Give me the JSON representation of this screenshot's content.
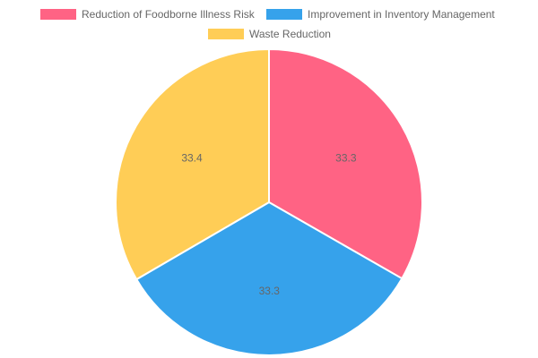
{
  "chart_data": {
    "type": "pie",
    "categories": [
      "Reduction of Foodborne Illness Risk",
      "Improvement in Inventory Management",
      "Waste Reduction"
    ],
    "values": [
      33.3,
      33.3,
      33.4
    ],
    "colors": [
      "#ff6384",
      "#36a2eb",
      "#ffcd56"
    ],
    "data_labels": [
      "33.3",
      "33.3",
      "33.4"
    ],
    "legend_position": "top",
    "start_angle": "top (12 o'clock), clockwise"
  }
}
